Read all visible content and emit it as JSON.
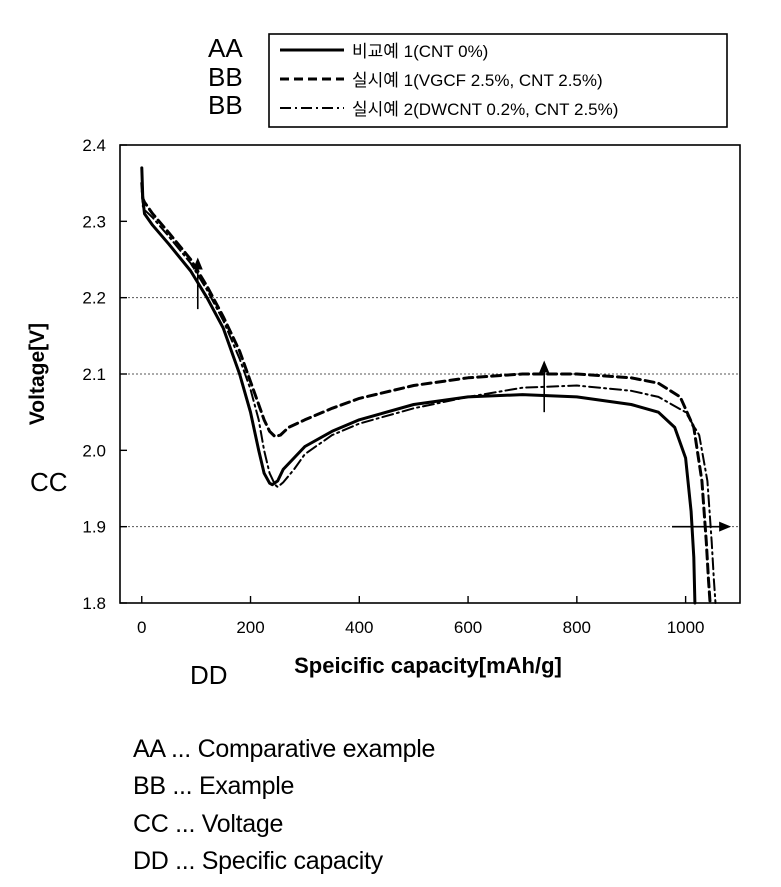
{
  "chart_data": {
    "type": "line",
    "xlabel": "Speicific capacity[mAh/g]",
    "ylabel": "Voltage[V]",
    "xlim": [
      -40,
      1100
    ],
    "ylim": [
      1.8,
      2.4
    ],
    "xticks": [
      "0",
      "200",
      "400",
      "600",
      "800",
      "1000"
    ],
    "yticks": [
      "1.8",
      "1.9",
      "2.0",
      "2.1",
      "2.2",
      "2.3",
      "2.4"
    ],
    "grid": "horizontal dotted lines at 1.9, 2.1 and 2.2",
    "legend_position": "top-right, outside plot",
    "series": [
      {
        "name": "비교예 1(CNT 0%)",
        "legend_code": "AA",
        "style": "solid",
        "color": "#000000",
        "x": [
          0,
          2,
          5,
          20,
          50,
          90,
          120,
          150,
          180,
          200,
          215,
          225,
          235,
          240,
          250,
          260,
          280,
          300,
          350,
          400,
          500,
          600,
          700,
          800,
          900,
          950,
          980,
          1000,
          1010,
          1015,
          1017
        ],
        "y": [
          2.37,
          2.33,
          2.31,
          2.295,
          2.27,
          2.235,
          2.2,
          2.16,
          2.1,
          2.05,
          2.0,
          1.97,
          1.957,
          1.955,
          1.96,
          1.975,
          1.99,
          2.005,
          2.025,
          2.04,
          2.06,
          2.07,
          2.073,
          2.07,
          2.06,
          2.05,
          2.03,
          1.99,
          1.92,
          1.86,
          1.8
        ]
      },
      {
        "name": "실시예 1(VGCF 2.5%, CNT 2.5%)",
        "legend_code": "BB",
        "style": "dashed",
        "color": "#000000",
        "x": [
          0,
          2,
          5,
          20,
          50,
          90,
          120,
          150,
          180,
          200,
          215,
          225,
          235,
          245,
          255,
          270,
          300,
          350,
          400,
          500,
          600,
          700,
          800,
          900,
          950,
          990,
          1015,
          1030,
          1038,
          1042,
          1045
        ],
        "y": [
          2.35,
          2.33,
          2.325,
          2.31,
          2.285,
          2.25,
          2.215,
          2.175,
          2.13,
          2.09,
          2.06,
          2.04,
          2.025,
          2.018,
          2.02,
          2.03,
          2.04,
          2.055,
          2.068,
          2.085,
          2.095,
          2.1,
          2.1,
          2.095,
          2.088,
          2.07,
          2.03,
          1.96,
          1.88,
          1.83,
          1.8
        ]
      },
      {
        "name": "실시예 2(DWCNT 0.2%, CNT 2.5%)",
        "legend_code": "BB",
        "style": "dashdot",
        "color": "#000000",
        "x": [
          0,
          2,
          5,
          20,
          50,
          90,
          120,
          150,
          180,
          200,
          215,
          225,
          235,
          245,
          250,
          260,
          280,
          300,
          350,
          400,
          500,
          600,
          700,
          800,
          900,
          950,
          1000,
          1025,
          1040,
          1048,
          1052,
          1055
        ],
        "y": [
          2.34,
          2.32,
          2.315,
          2.305,
          2.28,
          2.245,
          2.21,
          2.17,
          2.12,
          2.08,
          2.04,
          2.0,
          1.97,
          1.955,
          1.952,
          1.958,
          1.975,
          1.995,
          2.02,
          2.035,
          2.055,
          2.07,
          2.082,
          2.085,
          2.078,
          2.07,
          2.05,
          2.02,
          1.96,
          1.88,
          1.83,
          1.8
        ]
      }
    ],
    "annotations": [
      {
        "type": "arrow",
        "direction": "up",
        "x": 103,
        "y_from": 2.185,
        "y_to": 2.25
      },
      {
        "type": "arrow",
        "direction": "up",
        "x": 740,
        "y_from": 2.05,
        "y_to": 2.115
      },
      {
        "type": "arrow",
        "direction": "right",
        "y": 1.9,
        "x_from": 975,
        "x_to": 1080
      }
    ],
    "callout_labels": {
      "legend_codes": [
        "AA",
        "BB",
        "BB"
      ],
      "ylabel_code": "CC",
      "xlabel_code": "DD"
    }
  },
  "footnotes": [
    "AA ... Comparative example",
    "BB ... Example",
    "CC ... Voltage",
    "DD ... Specific capacity"
  ]
}
